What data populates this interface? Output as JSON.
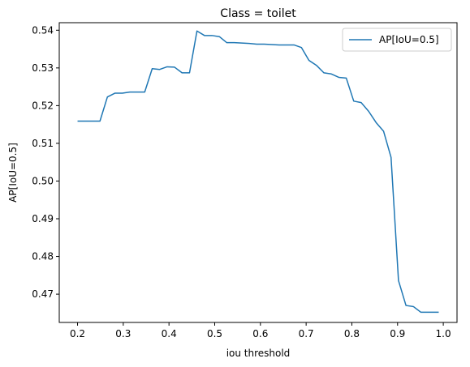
{
  "chart_data": {
    "type": "line",
    "title": "Class = toilet",
    "xlabel": "iou threshold",
    "ylabel": "AP[IoU=0.5]",
    "xlim": [
      0.16,
      1.03
    ],
    "ylim": [
      0.4625,
      0.542
    ],
    "xticks": [
      0.2,
      0.3,
      0.4,
      0.5,
      0.6,
      0.7,
      0.8,
      0.9,
      1.0
    ],
    "xtick_labels": [
      "0.2",
      "0.3",
      "0.4",
      "0.5",
      "0.6",
      "0.7",
      "0.8",
      "0.9",
      "1.0"
    ],
    "yticks": [
      0.47,
      0.48,
      0.49,
      0.5,
      0.51,
      0.52,
      0.53,
      0.54
    ],
    "ytick_labels": [
      "0.47",
      "0.48",
      "0.49",
      "0.50",
      "0.51",
      "0.52",
      "0.53",
      "0.54"
    ],
    "grid": false,
    "legend_position": "top-right",
    "series": [
      {
        "name": "AP[IoU=0.5]",
        "color": "#1f77b4",
        "x": [
          0.2,
          0.2163,
          0.2327,
          0.249,
          0.2653,
          0.2816,
          0.298,
          0.3143,
          0.3306,
          0.3469,
          0.3633,
          0.3796,
          0.3959,
          0.4122,
          0.4286,
          0.4449,
          0.4612,
          0.4776,
          0.4939,
          0.5102,
          0.5265,
          0.5429,
          0.5592,
          0.5755,
          0.5918,
          0.6082,
          0.6245,
          0.6408,
          0.6571,
          0.6735,
          0.6898,
          0.7061,
          0.7224,
          0.7388,
          0.7551,
          0.7714,
          0.7878,
          0.8041,
          0.8204,
          0.8367,
          0.8531,
          0.8694,
          0.8857,
          0.902,
          0.9184,
          0.9347,
          0.951,
          0.9673,
          0.9837,
          0.99
        ],
        "values": [
          0.5159,
          0.5159,
          0.5159,
          0.5159,
          0.5223,
          0.5233,
          0.5233,
          0.5236,
          0.5236,
          0.5236,
          0.5298,
          0.5296,
          0.5303,
          0.5302,
          0.5287,
          0.5287,
          0.5398,
          0.5386,
          0.5386,
          0.5383,
          0.5367,
          0.5367,
          0.5366,
          0.5365,
          0.5363,
          0.5363,
          0.5362,
          0.5361,
          0.5361,
          0.5361,
          0.5354,
          0.532,
          0.5307,
          0.5287,
          0.5284,
          0.5275,
          0.5273,
          0.5212,
          0.5208,
          0.5185,
          0.5155,
          0.5132,
          0.5063,
          0.4736,
          0.467,
          0.4667,
          0.4652,
          0.4652,
          0.4652,
          0.4652
        ]
      }
    ]
  }
}
